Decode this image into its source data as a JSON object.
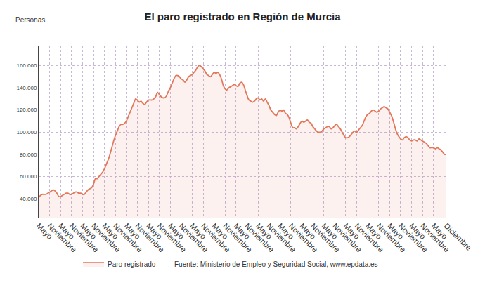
{
  "chart_data": {
    "type": "area",
    "title": "El paro registrado en Región de Murcia",
    "ylabel": "Personas",
    "source": "Fuente: Ministerio de Empleo y Seguridad Social, www.epdata.es",
    "categories": [
      "Mayo",
      null,
      null,
      null,
      null,
      null,
      "Noviembre",
      null,
      null,
      null,
      null,
      null,
      "Mayo",
      null,
      null,
      null,
      null,
      null,
      "Noviembre",
      null,
      null,
      null,
      null,
      null,
      "Mayo",
      null,
      null,
      null,
      null,
      null,
      "Noviembre",
      null,
      null,
      null,
      null,
      null,
      "Mayo",
      null,
      null,
      null,
      null,
      null,
      "Noviembre",
      null,
      null,
      null,
      null,
      null,
      "Mayo",
      null,
      null,
      null,
      null,
      null,
      "Noviembre",
      null,
      null,
      null,
      null,
      null,
      "Mayo",
      null,
      null,
      null,
      null,
      null,
      "Noviembre",
      null,
      null,
      null,
      null,
      null,
      "Mayo",
      null,
      null,
      null,
      null,
      null,
      "Noviembre",
      null,
      null,
      null,
      null,
      null,
      "Mayo",
      null,
      null,
      null,
      null,
      null,
      "Noviembre",
      null,
      null,
      null,
      null,
      null,
      "Mayo",
      null,
      null,
      null,
      null,
      null,
      "Noviembre",
      null,
      null,
      null,
      null,
      null,
      "Mayo",
      null,
      null,
      null,
      null,
      null,
      "Noviembre",
      null,
      null,
      null,
      null,
      null,
      "Mayo",
      null,
      null,
      null,
      null,
      null,
      "Noviembre",
      null,
      null,
      null,
      null,
      null,
      "Mayo",
      null,
      null,
      null,
      null,
      null,
      "Noviembre",
      null,
      null,
      null,
      null,
      null,
      "Mayo",
      null,
      null,
      null,
      null,
      null,
      "Noviembre",
      null,
      null,
      null,
      null,
      null,
      "Mayo",
      null,
      null,
      null,
      null,
      null,
      "Noviembre",
      null,
      null,
      null,
      null,
      null,
      "Mayo",
      null,
      null,
      null,
      null,
      null,
      "Noviembre",
      null,
      null,
      null,
      null,
      null,
      "Mayo",
      null,
      null,
      null,
      null,
      null,
      "Noviembre",
      null,
      null,
      null,
      null,
      null,
      "Mayo",
      null,
      null,
      null,
      null,
      null,
      "Noviembre",
      null,
      null,
      null,
      null,
      null,
      "Mayo",
      null,
      null,
      null,
      null,
      null,
      "Noviembre",
      null,
      null,
      null,
      null,
      null,
      "Mayo",
      null,
      null,
      null,
      null,
      null,
      null,
      "Diciembre"
    ],
    "series": [
      {
        "name": "Paro registrado",
        "color": "#e2775a",
        "values": [
          41000,
          43000,
          44000,
          44000,
          44000,
          45000,
          46000,
          47000,
          48000,
          47000,
          45000,
          42000,
          42000,
          43000,
          44000,
          45000,
          45000,
          44000,
          44000,
          45000,
          46000,
          46000,
          45000,
          45000,
          44000,
          44000,
          46000,
          48000,
          49000,
          50000,
          53000,
          58000,
          58000,
          60000,
          62000,
          64000,
          67000,
          71000,
          75000,
          80000,
          86000,
          92000,
          97000,
          101000,
          105000,
          107000,
          107000,
          108000,
          110000,
          114000,
          118000,
          122000,
          126000,
          130000,
          129000,
          127000,
          128000,
          126000,
          125000,
          127000,
          129000,
          129000,
          129000,
          130000,
          132000,
          136000,
          134000,
          132000,
          131000,
          131000,
          133000,
          137000,
          140000,
          144000,
          148000,
          151000,
          151000,
          150000,
          148000,
          147000,
          145000,
          147000,
          150000,
          151000,
          152000,
          154000,
          156000,
          159000,
          160000,
          159000,
          157000,
          155000,
          152000,
          151000,
          150000,
          152000,
          154000,
          153000,
          154000,
          152000,
          148000,
          142000,
          139000,
          138000,
          140000,
          141000,
          142000,
          143000,
          142000,
          141000,
          144000,
          145000,
          143000,
          138000,
          133000,
          129000,
          128000,
          127000,
          128000,
          130000,
          131000,
          129000,
          130000,
          128000,
          130000,
          127000,
          124000,
          120000,
          118000,
          116000,
          115000,
          118000,
          120000,
          119000,
          120000,
          117000,
          116000,
          113000,
          108000,
          104000,
          104000,
          103000,
          105000,
          108000,
          110000,
          109000,
          110000,
          111000,
          109000,
          108000,
          105000,
          103000,
          101000,
          100000,
          100000,
          101000,
          103000,
          104000,
          105000,
          105000,
          103000,
          104000,
          106000,
          107000,
          105000,
          103000,
          100000,
          97000,
          95000,
          95000,
          96000,
          98000,
          100000,
          101000,
          100000,
          102000,
          104000,
          106000,
          110000,
          114000,
          116000,
          117000,
          119000,
          120000,
          119000,
          118000,
          119000,
          121000,
          122000,
          123000,
          122000,
          121000,
          118000,
          115000,
          110000,
          104000,
          99000,
          96000,
          94000,
          93000,
          95000,
          96000,
          95000,
          93000,
          92000,
          93000,
          93000,
          92000,
          94000,
          93000,
          92000,
          91000,
          90000,
          88000,
          86000,
          86000,
          86000,
          85000,
          86000,
          85000,
          84000,
          82000,
          80000,
          80000
        ]
      }
    ],
    "ylim": [
      23000,
      178000
    ],
    "yticks": [
      {
        "value": 40000,
        "label": "40.000"
      },
      {
        "value": 60000,
        "label": "60.000"
      },
      {
        "value": 80000,
        "label": "80.000"
      },
      {
        "value": 100000,
        "label": "100.000"
      },
      {
        "value": 120000,
        "label": "120.000"
      },
      {
        "value": 140000,
        "label": "140.000"
      },
      {
        "value": 160000,
        "label": "160.000"
      }
    ],
    "grid": true,
    "legend": "bottom"
  }
}
